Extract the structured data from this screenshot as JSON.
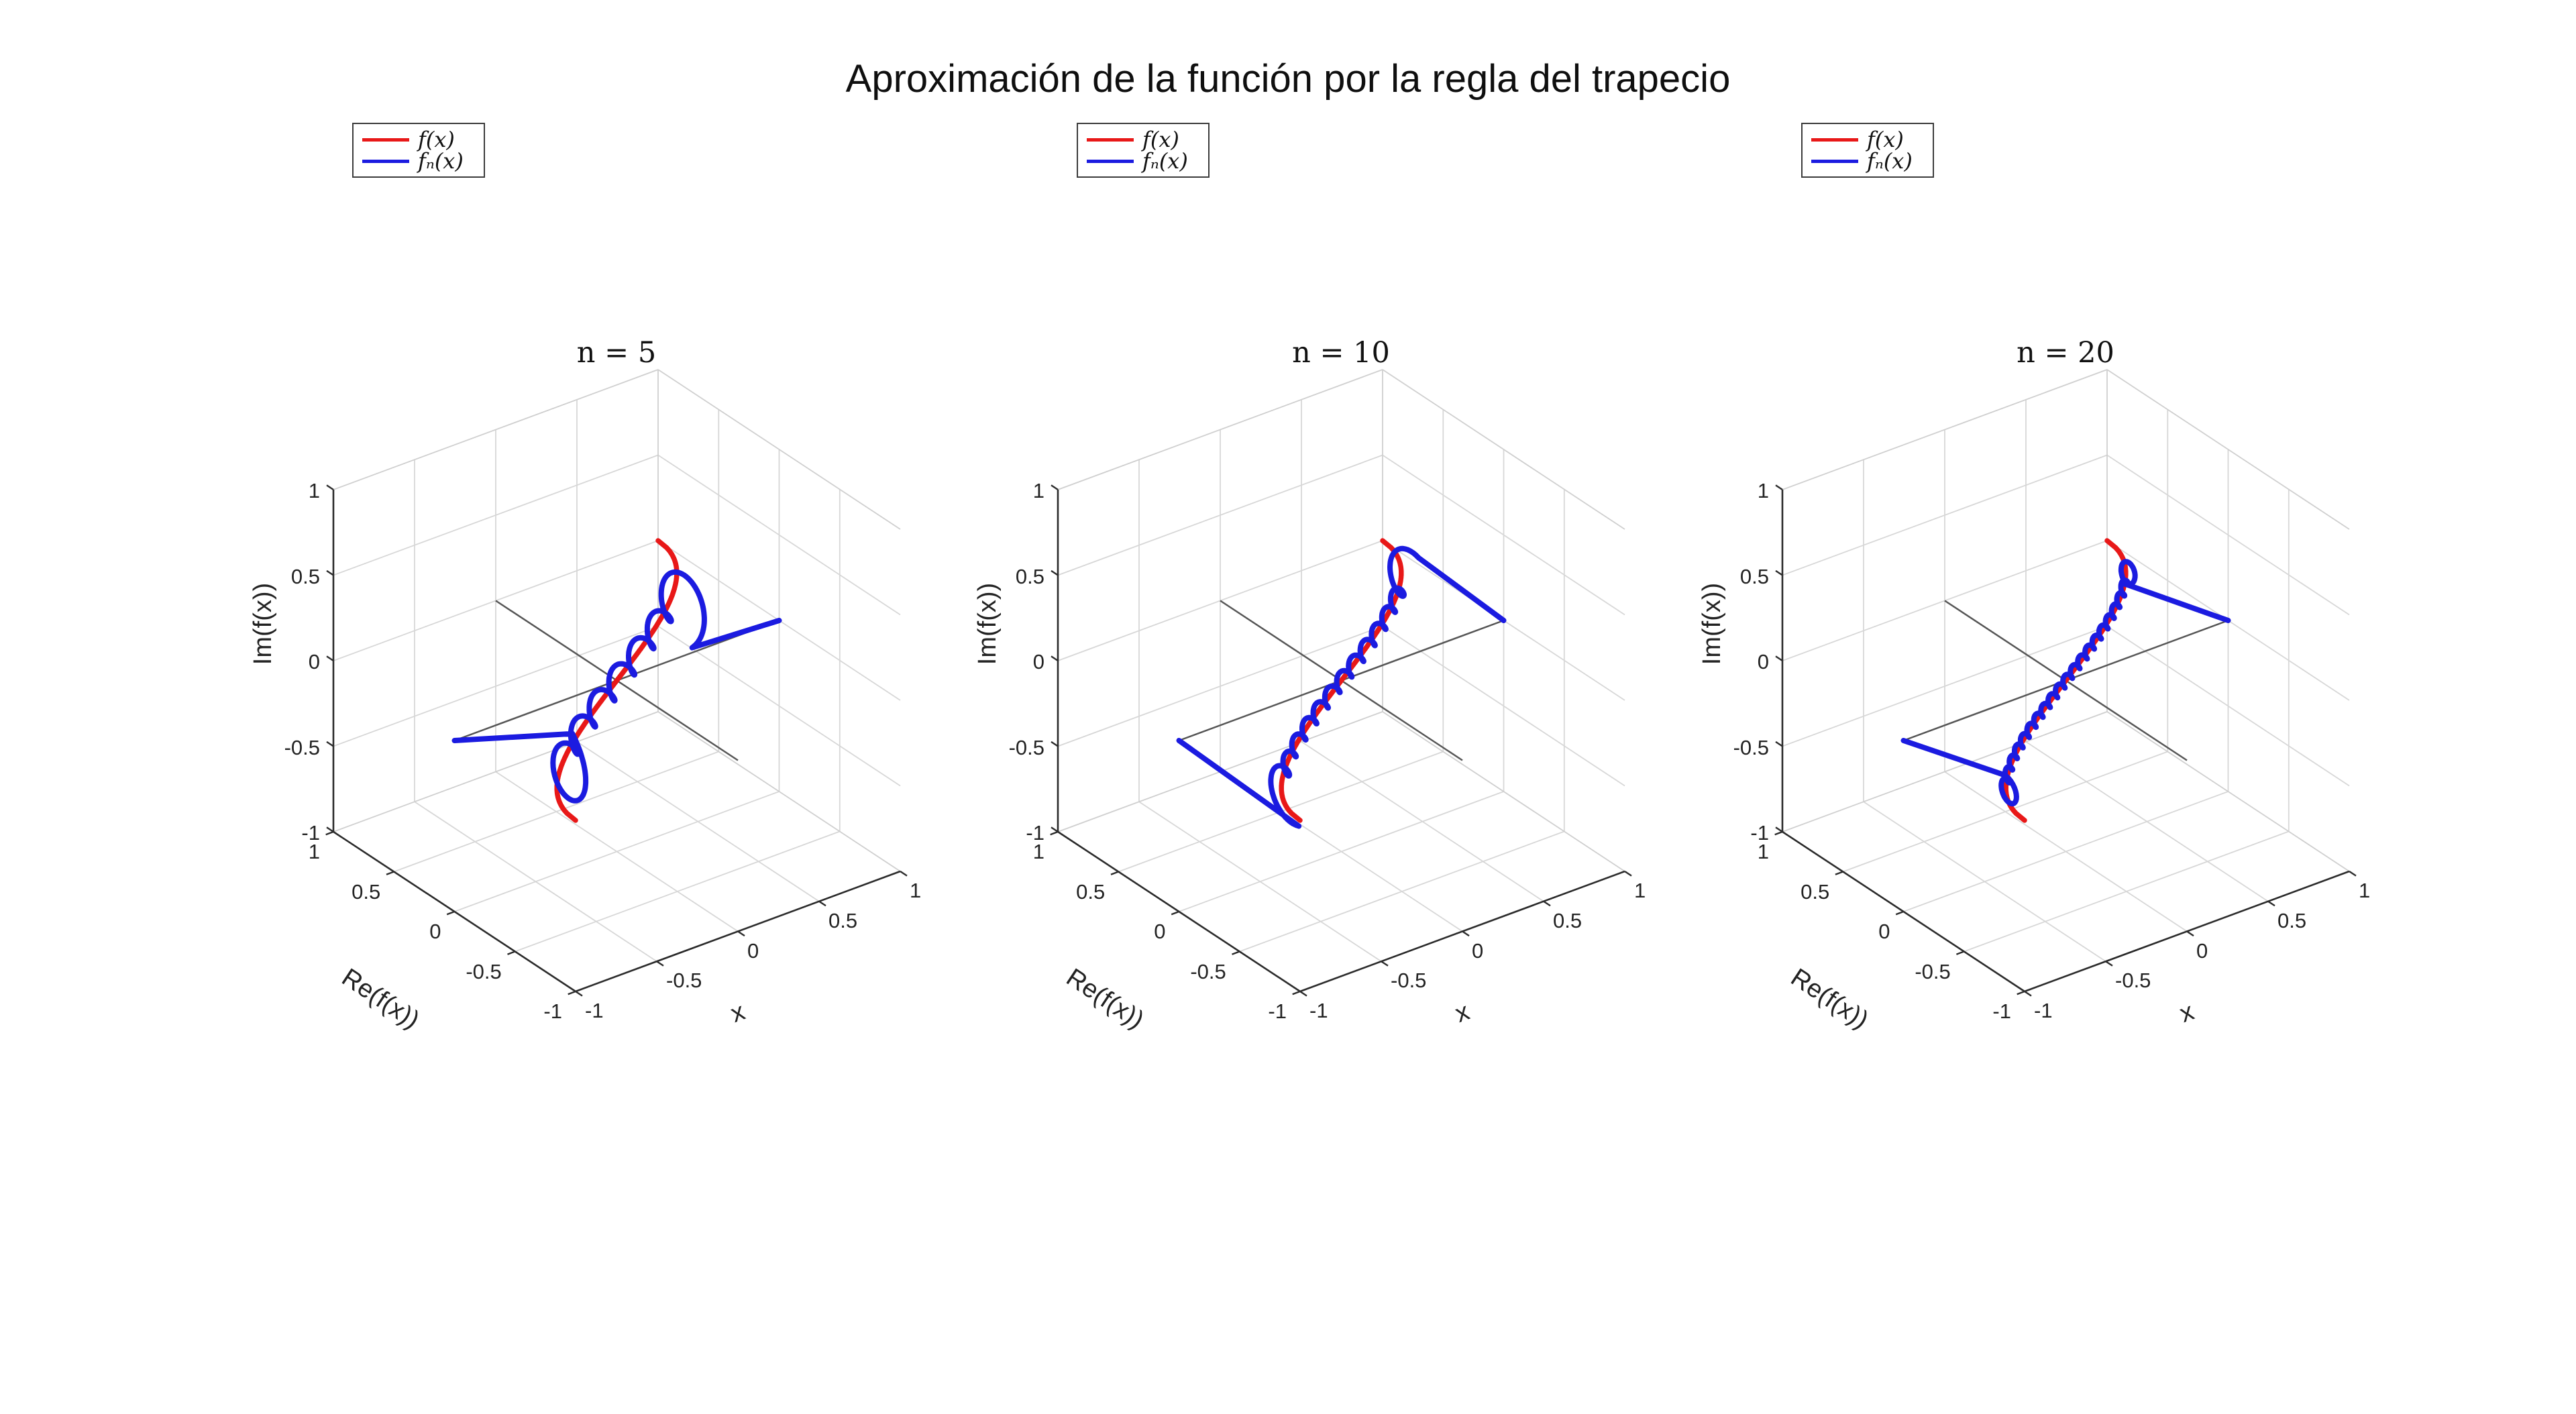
{
  "figure": {
    "title": "Aproximación de la función por la regla del trapecio",
    "background": "#ffffff"
  },
  "legend": {
    "border_color": "#3c3c3c",
    "entries": [
      {
        "label": "f(x)",
        "color": "#e81818"
      },
      {
        "label": "fₙ(x)",
        "color": "#1b1be0"
      }
    ]
  },
  "chart_data": {
    "type": "line",
    "subtype": "parametric-3d-curves",
    "title": "Aproximación de la función por la regla del trapecio",
    "view": {
      "azimuth": -37.5,
      "elevation": 30,
      "projection": "orthographic"
    },
    "grid": true,
    "colors": {
      "grid": "#d7d7d7",
      "wall_edge": "#cfcfcf",
      "axis": "#2b2b2b",
      "zero_axes": "#565656"
    },
    "axes": {
      "x": {
        "label": "x",
        "range": [
          -1,
          1
        ],
        "ticks": [
          -1,
          -0.5,
          0,
          0.5,
          1
        ],
        "tick_labels": [
          "-1",
          "-0.5",
          "0",
          "0.5",
          "1"
        ]
      },
      "re": {
        "label": "Re(f(x))",
        "range": [
          -1,
          1
        ],
        "ticks": [
          1,
          0.5,
          0,
          -0.5,
          -1
        ],
        "tick_labels": [
          "1",
          "0.5",
          "0",
          "-0.5",
          "-1"
        ]
      },
      "im": {
        "label": "Im(f(x))",
        "range": [
          -1,
          1
        ],
        "ticks": [
          1,
          0.5,
          0,
          -0.5,
          -1
        ],
        "tick_labels": [
          "1",
          "0.5",
          "0",
          "-0.5",
          "-1"
        ]
      }
    },
    "subplots": [
      {
        "title": "n = 5",
        "n": 5,
        "series": [
          {
            "name": "f(x)",
            "color": "#e81818",
            "line_width": 7.5,
            "formula": "f(x) = (2/pi)*asin(x), real-valued (Im = 0)",
            "points_x_re_im": [
              [
                -1,
                -1,
                0
              ],
              [
                -0.8,
                -0.59,
                0
              ],
              [
                -0.6,
                -0.41,
                0
              ],
              [
                -0.4,
                -0.26,
                0
              ],
              [
                -0.2,
                -0.13,
                0
              ],
              [
                0,
                0,
                0
              ],
              [
                0.2,
                0.13,
                0
              ],
              [
                0.4,
                0.26,
                0
              ],
              [
                0.6,
                0.41,
                0
              ],
              [
                0.8,
                0.59,
                0
              ],
              [
                1,
                1,
                0
              ]
            ]
          },
          {
            "name": "fₙ(x)",
            "color": "#1b1be0",
            "line_width": 8,
            "description": "Trapezoidal-rule approximation: complex helix braided around f(x), Gibbs-like loop near x = ±0.8, straight chords to the endpoints; fₙ(±1) = 0",
            "endpoints": [
              [
                -1,
                0,
                0
              ],
              [
                1,
                0,
                0
              ]
            ],
            "helix": {
              "t_max": 0.86,
              "omega": 27,
              "amp0": 0.06,
              "amp1": 0.32,
              "pow": 14
            },
            "key_points_x_re_im": [
              [
                -1,
                0,
                0
              ],
              [
                -0.86,
                -0.57,
                0.34
              ],
              [
                0,
                0.06,
                0
              ],
              [
                0.86,
                0.57,
                -0.34
              ],
              [
                1,
                0,
                0
              ]
            ]
          }
        ]
      },
      {
        "title": "n = 10",
        "n": 10,
        "series": [
          {
            "name": "f(x)",
            "color": "#e81818",
            "line_width": 7.5,
            "formula": "f(x) = (2/pi)*asin(x), real-valued (Im = 0)",
            "points_x_re_im": [
              [
                -1,
                -1,
                0
              ],
              [
                -0.8,
                -0.59,
                0
              ],
              [
                -0.6,
                -0.41,
                0
              ],
              [
                -0.4,
                -0.26,
                0
              ],
              [
                -0.2,
                -0.13,
                0
              ],
              [
                0,
                0,
                0
              ],
              [
                0.2,
                0.13,
                0
              ],
              [
                0.4,
                0.26,
                0
              ],
              [
                0.6,
                0.41,
                0
              ],
              [
                0.8,
                0.59,
                0
              ],
              [
                1,
                1,
                0
              ]
            ]
          },
          {
            "name": "fₙ(x)",
            "color": "#1b1be0",
            "line_width": 8,
            "description": "Tighter braid (~10 ripples), small fold near x = ±0.9, chords to endpoints; fₙ(±1) = 0",
            "endpoints": [
              [
                -1,
                0,
                0
              ],
              [
                1,
                0,
                0
              ]
            ],
            "helix": {
              "t_max": 0.89,
              "omega": 45,
              "amp0": 0.035,
              "amp1": 0.17,
              "pow": 20
            },
            "key_points_x_re_im": [
              [
                -1,
                0,
                0
              ],
              [
                -0.89,
                -0.56,
                0.14
              ],
              [
                0,
                0.035,
                0
              ],
              [
                0.89,
                0.56,
                -0.14
              ],
              [
                1,
                0,
                0
              ]
            ]
          }
        ]
      },
      {
        "title": "n = 20",
        "n": 20,
        "series": [
          {
            "name": "f(x)",
            "color": "#e81818",
            "line_width": 7.5,
            "formula": "f(x) = (2/pi)*asin(x), real-valued (Im = 0)",
            "points_x_re_im": [
              [
                -1,
                -1,
                0
              ],
              [
                -0.8,
                -0.59,
                0
              ],
              [
                -0.6,
                -0.41,
                0
              ],
              [
                -0.4,
                -0.26,
                0
              ],
              [
                -0.2,
                -0.13,
                0
              ],
              [
                0,
                0,
                0
              ],
              [
                0.2,
                0.13,
                0
              ],
              [
                0.4,
                0.26,
                0
              ],
              [
                0.6,
                0.41,
                0
              ],
              [
                0.8,
                0.59,
                0
              ],
              [
                1,
                1,
                0
              ]
            ]
          },
          {
            "name": "fₙ(x)",
            "color": "#1b1be0",
            "line_width": 8,
            "description": "Very tight braid hugging f(x) (~20 tiny ripples), separation only near x = ±0.94, long straight chords to endpoints; fₙ(±1) = 0",
            "endpoints": [
              [
                -1,
                0,
                0
              ],
              [
                1,
                0,
                0
              ]
            ],
            "helix": {
              "t_max": 0.94,
              "omega": 72,
              "amp0": 0.022,
              "amp1": 0.11,
              "pow": 26
            },
            "key_points_x_re_im": [
              [
                -1,
                0,
                0
              ],
              [
                -0.94,
                -0.8,
                0.125
              ],
              [
                0,
                0.022,
                0
              ],
              [
                0.94,
                0.8,
                -0.125
              ],
              [
                1,
                0,
                0
              ]
            ]
          }
        ]
      }
    ]
  }
}
